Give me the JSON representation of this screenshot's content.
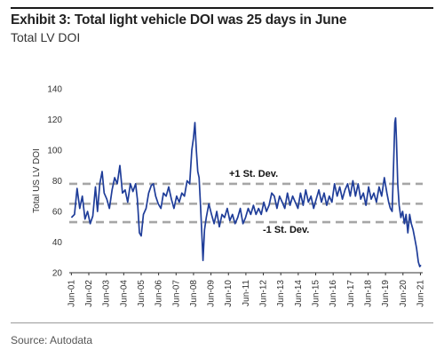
{
  "header": {
    "title": "Exhibit 3: Total light vehicle DOI was 25 days in June",
    "subtitle": "Total LV DOI"
  },
  "footer": {
    "source": "Source: Autodata"
  },
  "colors": {
    "series": "#1f3d99",
    "band_lines": "#a6a6a6",
    "text": "#222222"
  },
  "chart_data": {
    "type": "line",
    "title": "",
    "ylabel": "Total US LV DOI",
    "xlabel": "",
    "ylim": [
      20,
      140
    ],
    "yticks": [
      20,
      40,
      60,
      80,
      100,
      120,
      140
    ],
    "xlim": [
      2001.3,
      2021.55
    ],
    "xticks": [
      {
        "pos": 2001.42,
        "label": "Jun-01"
      },
      {
        "pos": 2002.42,
        "label": "Jun-02"
      },
      {
        "pos": 2003.42,
        "label": "Jun-03"
      },
      {
        "pos": 2004.42,
        "label": "Jun-04"
      },
      {
        "pos": 2005.42,
        "label": "Jun-05"
      },
      {
        "pos": 2006.42,
        "label": "Jun-06"
      },
      {
        "pos": 2007.42,
        "label": "Jun-07"
      },
      {
        "pos": 2008.42,
        "label": "Jun-08"
      },
      {
        "pos": 2009.42,
        "label": "Jun-09"
      },
      {
        "pos": 2010.42,
        "label": "Jun-10"
      },
      {
        "pos": 2011.42,
        "label": "Jun-11"
      },
      {
        "pos": 2012.42,
        "label": "Jun-12"
      },
      {
        "pos": 2013.42,
        "label": "Jun-13"
      },
      {
        "pos": 2014.42,
        "label": "Jun-14"
      },
      {
        "pos": 2015.42,
        "label": "Jun-15"
      },
      {
        "pos": 2016.42,
        "label": "Jun-16"
      },
      {
        "pos": 2017.42,
        "label": "Jun-17"
      },
      {
        "pos": 2018.42,
        "label": "Jun-18"
      },
      {
        "pos": 2019.42,
        "label": "Jun-19"
      },
      {
        "pos": 2020.42,
        "label": "Jun-20"
      },
      {
        "pos": 2021.42,
        "label": "Jun-21"
      }
    ],
    "grid": false,
    "reference_lines": [
      {
        "value": 78,
        "label": "+1 St. Dev."
      },
      {
        "value": 65,
        "label": ""
      },
      {
        "value": 53,
        "label": "-1 St. Dev."
      }
    ],
    "series": [
      {
        "points": [
          [
            2001.42,
            56
          ],
          [
            2001.6,
            58
          ],
          [
            2001.75,
            75
          ],
          [
            2001.9,
            62
          ],
          [
            2002.05,
            70
          ],
          [
            2002.2,
            55
          ],
          [
            2002.35,
            60
          ],
          [
            2002.5,
            52
          ],
          [
            2002.65,
            57
          ],
          [
            2002.8,
            76
          ],
          [
            2002.92,
            60
          ],
          [
            2003.05,
            78
          ],
          [
            2003.18,
            86
          ],
          [
            2003.3,
            72
          ],
          [
            2003.45,
            68
          ],
          [
            2003.6,
            62
          ],
          [
            2003.75,
            74
          ],
          [
            2003.9,
            82
          ],
          [
            2004.05,
            78
          ],
          [
            2004.2,
            90
          ],
          [
            2004.35,
            72
          ],
          [
            2004.5,
            74
          ],
          [
            2004.65,
            66
          ],
          [
            2004.8,
            78
          ],
          [
            2004.95,
            73
          ],
          [
            2005.1,
            78
          ],
          [
            2005.2,
            68
          ],
          [
            2005.32,
            46
          ],
          [
            2005.42,
            44
          ],
          [
            2005.55,
            58
          ],
          [
            2005.7,
            62
          ],
          [
            2005.85,
            72
          ],
          [
            2006.0,
            77
          ],
          [
            2006.12,
            78
          ],
          [
            2006.25,
            70
          ],
          [
            2006.4,
            65
          ],
          [
            2006.55,
            62
          ],
          [
            2006.7,
            72
          ],
          [
            2006.85,
            70
          ],
          [
            2007.0,
            76
          ],
          [
            2007.15,
            68
          ],
          [
            2007.3,
            62
          ],
          [
            2007.45,
            70
          ],
          [
            2007.6,
            66
          ],
          [
            2007.75,
            72
          ],
          [
            2007.9,
            70
          ],
          [
            2008.05,
            80
          ],
          [
            2008.2,
            78
          ],
          [
            2008.32,
            100
          ],
          [
            2008.42,
            108
          ],
          [
            2008.5,
            118
          ],
          [
            2008.58,
            100
          ],
          [
            2008.66,
            86
          ],
          [
            2008.74,
            82
          ],
          [
            2008.82,
            64
          ],
          [
            2008.9,
            44
          ],
          [
            2008.96,
            28
          ],
          [
            2009.05,
            48
          ],
          [
            2009.15,
            56
          ],
          [
            2009.3,
            65
          ],
          [
            2009.45,
            58
          ],
          [
            2009.6,
            52
          ],
          [
            2009.75,
            60
          ],
          [
            2009.9,
            50
          ],
          [
            2010.05,
            58
          ],
          [
            2010.2,
            56
          ],
          [
            2010.35,
            62
          ],
          [
            2010.5,
            54
          ],
          [
            2010.65,
            58
          ],
          [
            2010.8,
            52
          ],
          [
            2010.95,
            56
          ],
          [
            2011.1,
            62
          ],
          [
            2011.25,
            52
          ],
          [
            2011.4,
            56
          ],
          [
            2011.55,
            62
          ],
          [
            2011.7,
            58
          ],
          [
            2011.85,
            64
          ],
          [
            2012.0,
            58
          ],
          [
            2012.15,
            62
          ],
          [
            2012.3,
            58
          ],
          [
            2012.45,
            66
          ],
          [
            2012.6,
            60
          ],
          [
            2012.75,
            64
          ],
          [
            2012.9,
            72
          ],
          [
            2013.05,
            70
          ],
          [
            2013.2,
            62
          ],
          [
            2013.35,
            70
          ],
          [
            2013.5,
            66
          ],
          [
            2013.65,
            62
          ],
          [
            2013.8,
            72
          ],
          [
            2013.95,
            64
          ],
          [
            2014.1,
            70
          ],
          [
            2014.25,
            66
          ],
          [
            2014.4,
            62
          ],
          [
            2014.55,
            72
          ],
          [
            2014.7,
            64
          ],
          [
            2014.85,
            74
          ],
          [
            2015.0,
            66
          ],
          [
            2015.15,
            70
          ],
          [
            2015.3,
            62
          ],
          [
            2015.45,
            68
          ],
          [
            2015.6,
            74
          ],
          [
            2015.75,
            66
          ],
          [
            2015.9,
            72
          ],
          [
            2016.05,
            64
          ],
          [
            2016.2,
            70
          ],
          [
            2016.35,
            66
          ],
          [
            2016.5,
            78
          ],
          [
            2016.65,
            70
          ],
          [
            2016.8,
            76
          ],
          [
            2016.95,
            68
          ],
          [
            2017.1,
            74
          ],
          [
            2017.25,
            78
          ],
          [
            2017.4,
            70
          ],
          [
            2017.55,
            80
          ],
          [
            2017.7,
            70
          ],
          [
            2017.85,
            78
          ],
          [
            2018.0,
            68
          ],
          [
            2018.15,
            72
          ],
          [
            2018.3,
            64
          ],
          [
            2018.45,
            76
          ],
          [
            2018.6,
            68
          ],
          [
            2018.75,
            72
          ],
          [
            2018.9,
            66
          ],
          [
            2019.05,
            76
          ],
          [
            2019.2,
            70
          ],
          [
            2019.35,
            82
          ],
          [
            2019.5,
            72
          ],
          [
            2019.6,
            66
          ],
          [
            2019.7,
            62
          ],
          [
            2019.8,
            60
          ],
          [
            2019.88,
            90
          ],
          [
            2019.95,
            118
          ],
          [
            2020.0,
            121
          ],
          [
            2020.05,
            106
          ],
          [
            2020.12,
            78
          ],
          [
            2020.2,
            64
          ],
          [
            2020.3,
            56
          ],
          [
            2020.4,
            60
          ],
          [
            2020.5,
            52
          ],
          [
            2020.6,
            58
          ],
          [
            2020.7,
            46
          ],
          [
            2020.8,
            58
          ],
          [
            2020.9,
            52
          ],
          [
            2021.0,
            48
          ],
          [
            2021.1,
            42
          ],
          [
            2021.2,
            36
          ],
          [
            2021.3,
            27
          ],
          [
            2021.38,
            24
          ],
          [
            2021.45,
            25
          ]
        ]
      }
    ]
  }
}
